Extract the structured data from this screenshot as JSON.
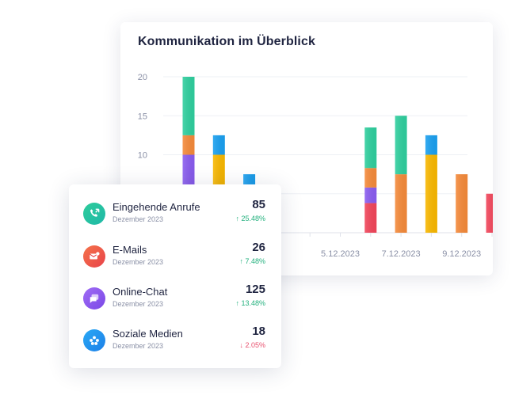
{
  "chart_card": {
    "title": "Kommunikation im Überblick"
  },
  "chart_data": {
    "type": "bar",
    "stacked": true,
    "y_ticks": [
      "20",
      "15",
      "10"
    ],
    "ylim": [
      0,
      20
    ],
    "x_tick_labels": [
      "5.12.2023",
      "7.12.2023",
      "9.12.2023"
    ],
    "categories": [
      "",
      "",
      "",
      "",
      "",
      "",
      "",
      "",
      "",
      "",
      ""
    ],
    "series": [
      {
        "color": "#f2455a",
        "values": [
          0,
          0,
          0,
          0,
          0,
          0,
          3.8,
          0,
          0,
          0,
          5
        ]
      },
      {
        "color": "#8a5cf0",
        "values": [
          10,
          0,
          0,
          0,
          0,
          0,
          2,
          0,
          0,
          0,
          0
        ]
      },
      {
        "color": "#f9b800",
        "values": [
          0,
          10,
          0,
          0,
          0,
          0,
          0,
          0,
          10,
          0,
          0
        ]
      },
      {
        "color": "#f58a3a",
        "values": [
          2.5,
          0,
          0,
          0,
          0,
          0,
          2.5,
          7.5,
          0,
          7.5,
          0
        ]
      },
      {
        "color": "#1aa0f0",
        "values": [
          0,
          2.5,
          7.5,
          0,
          0,
          0,
          0,
          0,
          2.5,
          0,
          0
        ]
      },
      {
        "color": "#2fcf9e",
        "values": [
          7.5,
          0,
          0,
          0,
          0,
          0,
          5.2,
          7.5,
          0,
          0,
          0
        ]
      }
    ],
    "grid": true
  },
  "stats": {
    "items": [
      {
        "label": "Eingehende Anrufe",
        "sub": "Dezember 2023",
        "value": "85",
        "change": "25.48%",
        "trend": "up",
        "icon": "phone-icon",
        "icon_from": "#2ecc9a",
        "icon_to": "#1fb8a8"
      },
      {
        "label": "E-Mails",
        "sub": "Dezember 2023",
        "value": "26",
        "change": "7.48%",
        "trend": "up",
        "icon": "mail-icon",
        "icon_from": "#f5734a",
        "icon_to": "#e8424a"
      },
      {
        "label": "Online-Chat",
        "sub": "Dezember 2023",
        "value": "125",
        "change": "13.48%",
        "trend": "up",
        "icon": "chat-icon",
        "icon_from": "#a06cf5",
        "icon_to": "#7a48e6"
      },
      {
        "label": "Soziale Medien",
        "sub": "Dezember 2023",
        "value": "18",
        "change": "2.05%",
        "trend": "down",
        "icon": "social-icon",
        "icon_from": "#2aa9f5",
        "icon_to": "#1c7fe8"
      }
    ]
  }
}
